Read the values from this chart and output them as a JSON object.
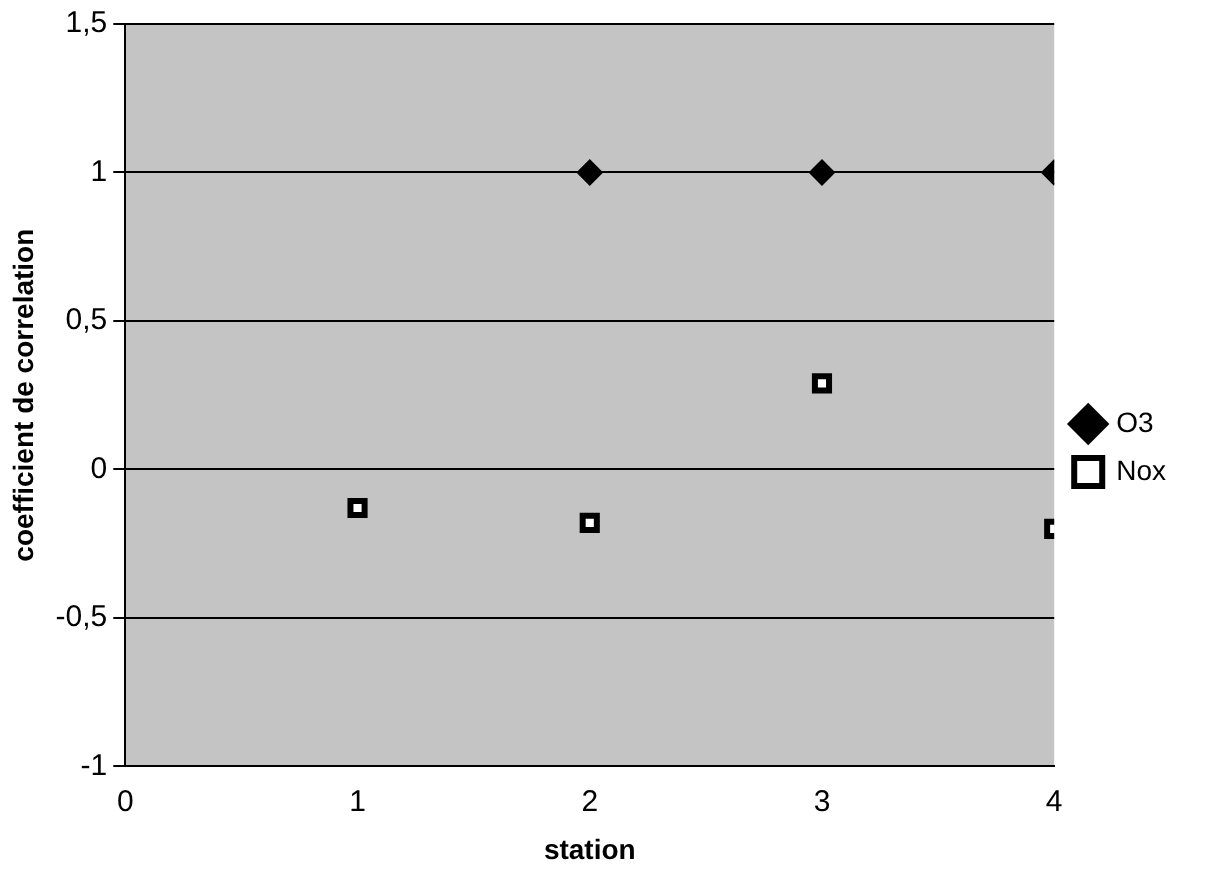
{
  "chart_data": {
    "type": "scatter",
    "xlabel": "station",
    "ylabel": "coefficient de correlation",
    "xlim": [
      0,
      4
    ],
    "xticks": [
      0,
      1,
      2,
      3,
      4
    ],
    "ylim": [
      -1,
      1.5
    ],
    "yticks": [
      {
        "value": -1,
        "label": "-1"
      },
      {
        "value": -0.5,
        "label": "-0,5"
      },
      {
        "value": 0,
        "label": "0"
      },
      {
        "value": 0.5,
        "label": "0,5"
      },
      {
        "value": 1,
        "label": "1"
      },
      {
        "value": 1.5,
        "label": "1,5"
      }
    ],
    "grid": "y",
    "legend": "right",
    "series": [
      {
        "name": "O3",
        "color": "#000000",
        "marker": "diamond",
        "x": [
          2,
          3,
          4
        ],
        "values": [
          1,
          1,
          1
        ]
      },
      {
        "name": "Nox",
        "color": "#000000",
        "marker": "square",
        "x": [
          1,
          2,
          3,
          4
        ],
        "values": [
          -0.13,
          -0.18,
          0.29,
          -0.2
        ]
      }
    ]
  }
}
